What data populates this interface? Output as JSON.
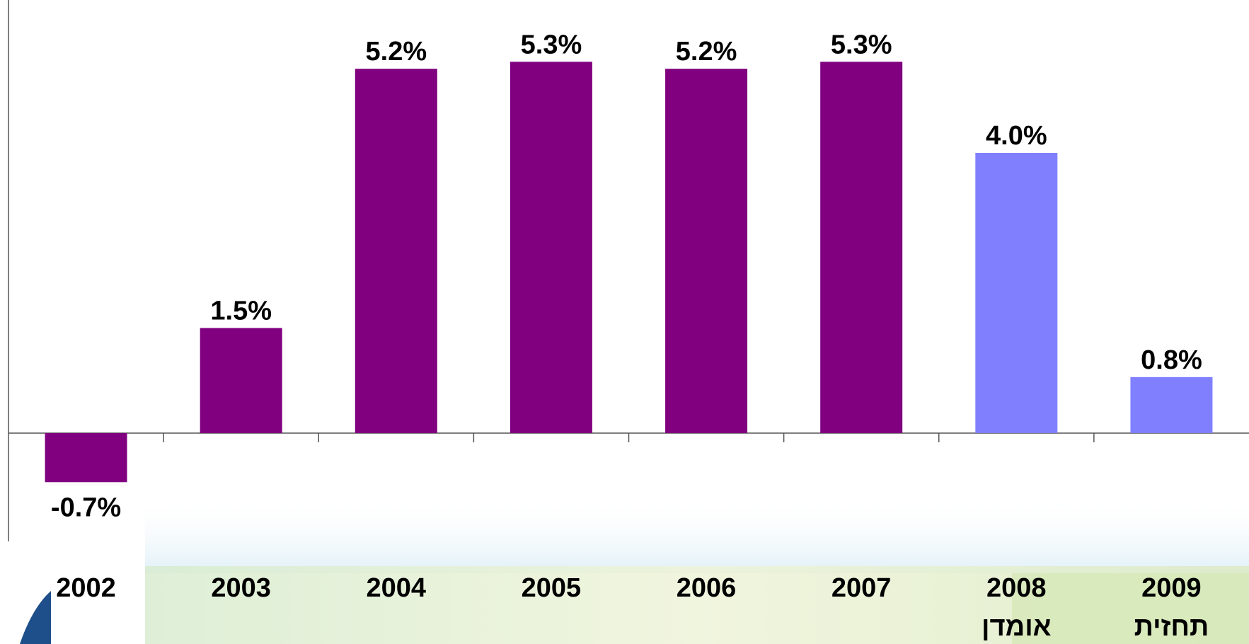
{
  "chart_data": {
    "type": "bar",
    "categories": [
      "2002",
      "2003",
      "2004",
      "2005",
      "2006",
      "2007",
      "2008",
      "2009"
    ],
    "sub_labels": [
      "",
      "",
      "",
      "",
      "",
      "",
      "אומדן",
      "תחזית"
    ],
    "values": [
      -0.7,
      1.5,
      5.2,
      5.3,
      5.2,
      5.3,
      4.0,
      0.8
    ],
    "value_labels": [
      "-0.7%",
      "1.5%",
      "5.2%",
      "5.3%",
      "5.2%",
      "5.3%",
      "4.0%",
      "0.8%"
    ],
    "bar_colors": [
      "#800080",
      "#800080",
      "#800080",
      "#800080",
      "#800080",
      "#800080",
      "#8080ff",
      "#8080ff"
    ],
    "title": "",
    "xlabel": "",
    "ylabel": "",
    "ylim": [
      -1.5,
      6.0
    ],
    "grid": false,
    "legend": "none"
  }
}
